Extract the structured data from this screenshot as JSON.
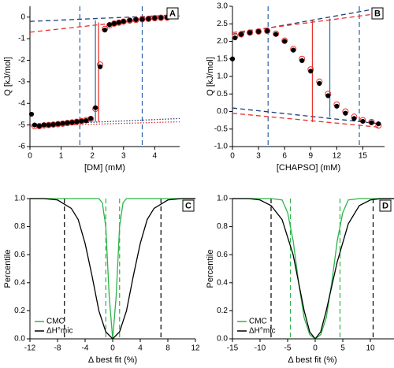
{
  "chart_data": [
    {
      "type": "scatter",
      "label": "A",
      "xlabel": "[DM] (mM)",
      "ylabel": "Q [kJ/mol]",
      "xlim": [
        0,
        4.8
      ],
      "ylim": [
        -6,
        0.5
      ],
      "xticks": [
        0,
        1,
        2,
        3,
        4
      ],
      "yticks": [
        -6,
        -5,
        -4,
        -3,
        -2,
        -1,
        0
      ],
      "series": [
        {
          "color": "#e8312c",
          "marker": "open",
          "x": [
            0.15,
            0.3,
            0.45,
            0.6,
            0.75,
            0.9,
            1.05,
            1.2,
            1.35,
            1.5,
            1.65,
            1.8,
            1.95,
            2.1,
            2.25,
            2.4,
            2.55,
            2.7,
            2.85,
            3.0,
            3.2,
            3.4,
            3.6,
            3.8,
            4.0,
            4.2,
            4.4
          ],
          "values": [
            -5.05,
            -5.05,
            -5.02,
            -5.0,
            -4.98,
            -4.96,
            -4.94,
            -4.91,
            -4.88,
            -4.85,
            -4.82,
            -4.78,
            -4.72,
            -4.25,
            -2.2,
            -0.55,
            -0.38,
            -0.3,
            -0.26,
            -0.21,
            -0.16,
            -0.13,
            -0.1,
            -0.08,
            -0.05,
            -0.03,
            -0.02
          ]
        },
        {
          "color": "#000000",
          "marker": "filled",
          "x": [
            0.05,
            0.15,
            0.3,
            0.45,
            0.6,
            0.75,
            0.9,
            1.05,
            1.2,
            1.35,
            1.5,
            1.65,
            1.8,
            1.95,
            2.1,
            2.25,
            2.4,
            2.55,
            2.7,
            2.85,
            3.0,
            3.2,
            3.4,
            3.6,
            3.8,
            4.0,
            4.2,
            4.4
          ],
          "values": [
            -4.5,
            -5.0,
            -5.05,
            -5.0,
            -5.0,
            -4.98,
            -4.95,
            -4.93,
            -4.9,
            -4.88,
            -4.85,
            -4.82,
            -4.8,
            -4.7,
            -4.2,
            -2.3,
            -0.6,
            -0.35,
            -0.3,
            -0.25,
            -0.2,
            -0.15,
            -0.12,
            -0.1,
            -0.08,
            -0.05,
            -0.03,
            -0.02
          ]
        }
      ],
      "lines": [
        {
          "color": "#1f3f7a",
          "dash": "dashed",
          "x": [
            0,
            4.8
          ],
          "values": [
            -0.2,
            0.1
          ]
        },
        {
          "color": "#e8312c",
          "dash": "dashed",
          "x": [
            0,
            4.8
          ],
          "values": [
            -0.7,
            0.05
          ]
        },
        {
          "color": "#1f3f7a",
          "dash": "dotted",
          "x": [
            0,
            4.8
          ],
          "values": [
            -5.0,
            -4.7
          ]
        },
        {
          "color": "#e8312c",
          "dash": "dotted",
          "x": [
            0,
            4.8
          ],
          "values": [
            -5.05,
            -4.85
          ]
        },
        {
          "color": "#e8312c",
          "dash": "solid",
          "x": [
            2.2,
            2.2
          ],
          "values": [
            -0.25,
            -4.85
          ]
        },
        {
          "color": "#2a7ab0",
          "dash": "solid",
          "x": [
            2.1,
            2.1
          ],
          "values": [
            -0.15,
            -4.85
          ]
        }
      ],
      "vlines": [
        {
          "x": 1.6,
          "color": "#2a5fa8",
          "dash": "dashed"
        },
        {
          "x": 3.6,
          "color": "#2a5fa8",
          "dash": "dashed"
        }
      ]
    },
    {
      "type": "scatter",
      "label": "B",
      "xlabel": "[CHAPSO] (mM)",
      "ylabel": "Q [kJ/mol]",
      "xlim": [
        0,
        17.5
      ],
      "ylim": [
        -1,
        3
      ],
      "xticks": [
        0,
        3,
        6,
        9,
        12,
        15
      ],
      "yticks": [
        {
          "value": -1,
          "label": "-1.0"
        },
        -0.5,
        {
          "value": 0,
          "label": "0.0"
        },
        0.5,
        {
          "value": 1,
          "label": "1.0"
        },
        1.5,
        {
          "value": 2,
          "label": "2.0"
        },
        2.5,
        {
          "value": 3,
          "label": "3.0"
        }
      ],
      "series": [
        {
          "color": "#e8312c",
          "marker": "open",
          "x": [
            0.3,
            1,
            2,
            3,
            4,
            5,
            6,
            7,
            8,
            9,
            10,
            11,
            12,
            13,
            14,
            15,
            16,
            16.8
          ],
          "values": [
            2.15,
            2.2,
            2.25,
            2.28,
            2.3,
            2.22,
            2.02,
            1.78,
            1.5,
            1.2,
            0.85,
            0.5,
            0.2,
            0,
            -0.15,
            -0.25,
            -0.3,
            -0.4
          ]
        },
        {
          "color": "#000000",
          "marker": "filled",
          "x": [
            0,
            0.3,
            1,
            2,
            3,
            4,
            5,
            6,
            7,
            8,
            9,
            10,
            11,
            12,
            13,
            14,
            15,
            16,
            16.8
          ],
          "values": [
            1.5,
            2.1,
            2.2,
            2.25,
            2.28,
            2.3,
            2.2,
            2.0,
            1.75,
            1.45,
            1.15,
            0.8,
            0.45,
            0.15,
            -0.05,
            -0.2,
            -0.28,
            -0.32,
            -0.35
          ]
        }
      ],
      "lines": [
        {
          "color": "#1f3f7a",
          "dash": "dashed",
          "x": [
            0,
            17
          ],
          "values": [
            2.2,
            2.95
          ]
        },
        {
          "color": "#e8312c",
          "dash": "dashed",
          "x": [
            0,
            17
          ],
          "values": [
            2.25,
            2.8
          ]
        },
        {
          "color": "#1f3f7a",
          "dash": "dashed",
          "x": [
            0,
            17
          ],
          "values": [
            0.1,
            -0.35
          ]
        },
        {
          "color": "#e8312c",
          "dash": "dashed",
          "x": [
            0,
            17
          ],
          "values": [
            -0.05,
            -0.45
          ]
        },
        {
          "color": "#e8312c",
          "dash": "solid",
          "x": [
            9.2,
            9.2
          ],
          "values": [
            -0.3,
            2.6
          ]
        },
        {
          "color": "#2a7ab0",
          "dash": "solid",
          "x": [
            11.2,
            11.2
          ],
          "values": [
            -0.15,
            2.65
          ]
        }
      ],
      "vlines": [
        {
          "x": 4.1,
          "color": "#2a5fa8",
          "dash": "dashed"
        },
        {
          "x": 14.6,
          "color": "#2a5fa8",
          "dash": "dashed"
        }
      ]
    },
    {
      "type": "line",
      "label": "C",
      "xlabel": "Δ best fit (%)",
      "ylabel": "Percentile",
      "xlim": [
        -12,
        12
      ],
      "ylim": [
        0,
        1
      ],
      "xticks": [
        -12,
        -8,
        -4,
        0,
        4,
        8,
        12
      ],
      "yticks": [
        {
          "value": 0,
          "label": "0.0"
        },
        0.2,
        0.4,
        0.6,
        0.8,
        {
          "value": 1,
          "label": "1.0"
        }
      ],
      "legend": "lower left",
      "series": [
        {
          "name": "CMC",
          "color": "#2db34a",
          "x": [
            -12,
            -3,
            -2,
            -1.5,
            -1,
            -0.5,
            0,
            0.5,
            1,
            1.5,
            2,
            3,
            12
          ],
          "values": [
            1,
            1,
            1,
            0.97,
            0.8,
            0.3,
            0,
            0.3,
            0.8,
            0.97,
            1,
            1,
            1
          ]
        },
        {
          "name": "ΔH°mic",
          "color": "#000000",
          "x": [
            -12,
            -10,
            -8,
            -6,
            -5,
            -4,
            -3,
            -2,
            -1,
            0,
            1,
            2,
            3,
            4,
            5,
            6,
            8,
            10,
            12
          ],
          "values": [
            1,
            1,
            0.99,
            0.93,
            0.85,
            0.68,
            0.45,
            0.2,
            0.05,
            0,
            0.05,
            0.2,
            0.45,
            0.68,
            0.85,
            0.93,
            0.99,
            1,
            1
          ]
        }
      ],
      "vlines": [
        {
          "x": -7,
          "color": "#000000",
          "dash": "dashed"
        },
        {
          "x": 7,
          "color": "#000000",
          "dash": "dashed"
        },
        {
          "x": -1,
          "color": "#2db34a",
          "dash": "dashed"
        },
        {
          "x": 1,
          "color": "#2db34a",
          "dash": "dashed"
        }
      ]
    },
    {
      "type": "line",
      "label": "D",
      "xlabel": "Δ best fit (%)",
      "ylabel": "Percentile",
      "xlim": [
        -15,
        15
      ],
      "ylim": [
        0,
        1
      ],
      "xticks": [
        -15,
        -10,
        -5,
        0,
        5,
        10,
        15
      ],
      "yticks": [
        {
          "value": 0,
          "label": "0.0"
        },
        0.2,
        0.4,
        0.6,
        0.8,
        {
          "value": 1,
          "label": "1.0"
        }
      ],
      "legend": "lower left",
      "series": [
        {
          "name": "CMC",
          "color": "#2db34a",
          "x": [
            -15,
            -8,
            -6,
            -5,
            -4,
            -3,
            -2,
            -1,
            0,
            1,
            2,
            3,
            4,
            5,
            6,
            8,
            15
          ],
          "values": [
            1,
            1,
            0.99,
            0.9,
            0.7,
            0.4,
            0.15,
            0.03,
            0,
            0.03,
            0.15,
            0.4,
            0.7,
            0.9,
            0.99,
            1,
            1
          ]
        },
        {
          "name": "ΔH°mic",
          "color": "#000000",
          "x": [
            -15,
            -12,
            -10,
            -8,
            -6,
            -4,
            -2,
            -1,
            0,
            1,
            2,
            4,
            6,
            8,
            10,
            12,
            15
          ],
          "values": [
            1,
            1,
            0.99,
            0.95,
            0.85,
            0.6,
            0.2,
            0.05,
            0,
            0.05,
            0.2,
            0.55,
            0.82,
            0.95,
            0.99,
            1,
            1
          ]
        }
      ],
      "vlines": [
        {
          "x": -8,
          "color": "#000000",
          "dash": "dashed"
        },
        {
          "x": 10.5,
          "color": "#000000",
          "dash": "dashed"
        },
        {
          "x": -4.5,
          "color": "#2db34a",
          "dash": "dashed"
        },
        {
          "x": 4.5,
          "color": "#2db34a",
          "dash": "dashed"
        }
      ]
    }
  ]
}
